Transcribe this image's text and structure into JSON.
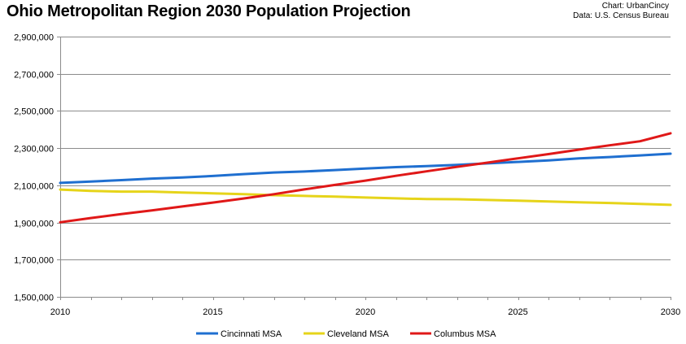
{
  "chart_data": {
    "type": "line",
    "title": "Ohio Metropolitan Region 2030 Population Projection",
    "credits": [
      "Chart: UrbanCincy",
      "Data: U.S. Census Bureau"
    ],
    "xlabel": "",
    "ylabel": "",
    "xlim": [
      2010,
      2030
    ],
    "ylim": [
      1500000,
      2900000
    ],
    "x_ticks": [
      2010,
      2015,
      2020,
      2025,
      2030
    ],
    "y_ticks": [
      1500000,
      1700000,
      1900000,
      2100000,
      2300000,
      2500000,
      2700000,
      2900000
    ],
    "y_tick_labels": [
      "1,500,000",
      "1,700,000",
      "1,900,000",
      "2,100,000",
      "2,300,000",
      "2,500,000",
      "2,700,000",
      "2,900,000"
    ],
    "grid": "horizontal",
    "legend_position": "bottom",
    "x": [
      2010,
      2011,
      2012,
      2013,
      2014,
      2015,
      2016,
      2017,
      2018,
      2019,
      2020,
      2021,
      2022,
      2023,
      2024,
      2025,
      2026,
      2027,
      2028,
      2029,
      2030
    ],
    "series": [
      {
        "name": "Cincinnati MSA",
        "color": "#1f6fd0",
        "values": [
          2113000,
          2120000,
          2128000,
          2136000,
          2142000,
          2150000,
          2160000,
          2169000,
          2174000,
          2182000,
          2190000,
          2198000,
          2203000,
          2210000,
          2218000,
          2226000,
          2234000,
          2245000,
          2252000,
          2261000,
          2270000
        ]
      },
      {
        "name": "Cleveland MSA",
        "color": "#e6d41a",
        "values": [
          2077000,
          2070000,
          2066000,
          2066000,
          2061000,
          2057000,
          2052000,
          2047000,
          2043000,
          2039000,
          2034000,
          2030000,
          2026000,
          2025000,
          2021000,
          2017000,
          2013000,
          2009000,
          2005000,
          2000000,
          1995000
        ]
      },
      {
        "name": "Columbus MSA",
        "color": "#e01818",
        "values": [
          1901000,
          1924000,
          1945000,
          1965000,
          1986000,
          2007000,
          2029000,
          2052000,
          2078000,
          2102000,
          2125000,
          2151000,
          2175000,
          2199000,
          2222000,
          2245000,
          2268000,
          2292000,
          2315000,
          2337000,
          2380000
        ]
      }
    ]
  }
}
